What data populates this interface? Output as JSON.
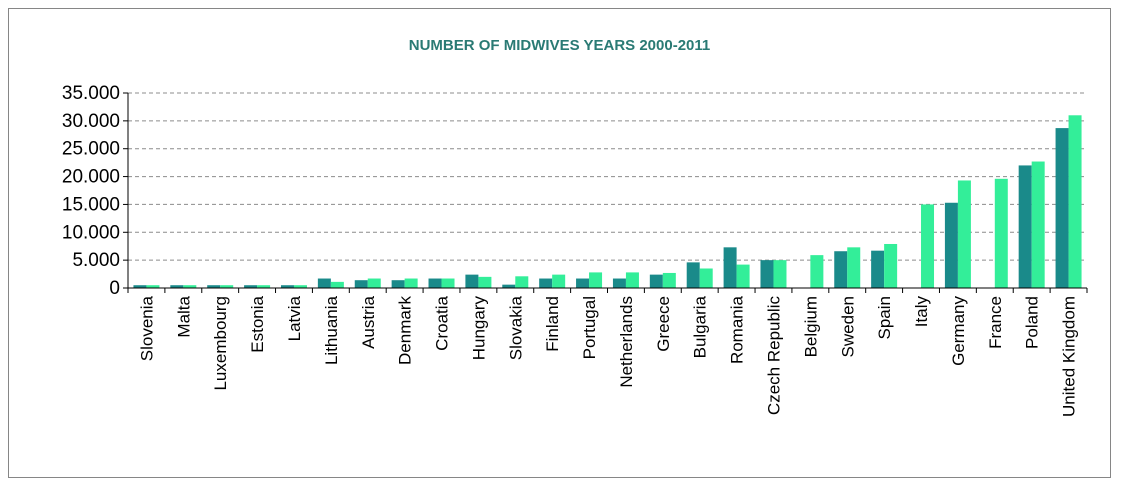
{
  "chart_data": {
    "type": "bar",
    "title": "NUMBER OF MIDWIVES YEARS 2000-2011",
    "xlabel": "",
    "ylabel": "",
    "ylim": [
      0,
      35000
    ],
    "yticks": [
      "35.000",
      "30.000",
      "25.000",
      "20.000",
      "15.000",
      "10.000",
      "5.000",
      "0"
    ],
    "ytick_values": [
      35000,
      30000,
      25000,
      20000,
      15000,
      10000,
      5000,
      0
    ],
    "grid": true,
    "legend": "none",
    "categories": [
      "Slovenia",
      "Malta",
      "Luxembourg",
      "Estonia",
      "Latvia",
      "Lithuania",
      "Austria",
      "Denmark",
      "Croatia",
      "Hungary",
      "Slovakia",
      "Finland",
      "Portugal",
      "Netherlands",
      "Greece",
      "Bulgaria",
      "Romania",
      "Czech Republic",
      "Belgium",
      "Sweden",
      "Spain",
      "Italy",
      "Germany",
      "France",
      "Poland",
      "United Kingdom"
    ],
    "series": [
      {
        "color": "#1a8a8a",
        "values": [
          500,
          500,
          500,
          500,
          500,
          1700,
          1400,
          1400,
          1700,
          2400,
          600,
          1700,
          1700,
          1700,
          2400,
          4600,
          7300,
          5000,
          null,
          6600,
          6700,
          null,
          15300,
          null,
          22000,
          28700
        ]
      },
      {
        "color": "#33ee99",
        "values": [
          500,
          500,
          500,
          500,
          500,
          1100,
          1700,
          1700,
          1700,
          2000,
          2100,
          2400,
          2800,
          2800,
          2700,
          3500,
          4200,
          5000,
          5900,
          7300,
          7900,
          15000,
          19300,
          19600,
          22700,
          31000
        ]
      }
    ],
    "colors": {
      "title": "#2a7a74",
      "bar_dark": "#1a8a8a",
      "bar_light": "#33ee99",
      "grid": "#8c8c8c",
      "axis": "#000000"
    }
  }
}
